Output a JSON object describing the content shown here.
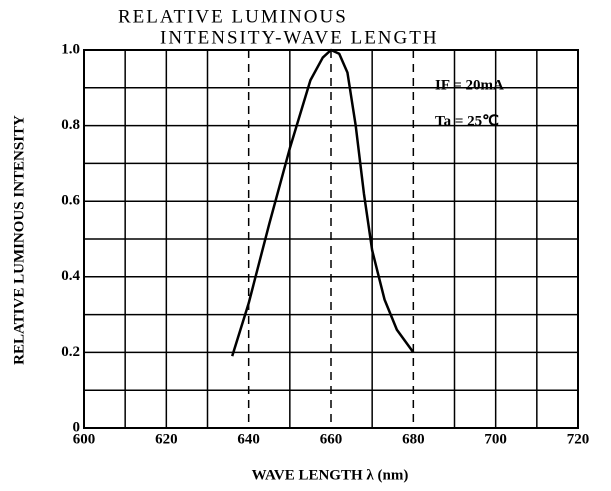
{
  "chart_data": {
    "type": "line",
    "title": [
      "RELATIVE LUMINOUS",
      "INTENSITY-WAVE LENGTH"
    ],
    "xlabel": "WAVE LENGTH  λ   (nm)",
    "ylabel": "RELATIVE LUMINOUS INTENSITY",
    "annotations": [
      "IF = 20mA",
      "Ta = 25℃"
    ],
    "series": [
      {
        "color": "#000000",
        "x": [
          636,
          640,
          645,
          650,
          655,
          658,
          660,
          662,
          664,
          666,
          668,
          670,
          673,
          676,
          680
        ],
        "values": [
          0.19,
          0.33,
          0.54,
          0.74,
          0.92,
          0.98,
          1.0,
          0.99,
          0.94,
          0.8,
          0.62,
          0.47,
          0.34,
          0.26,
          0.2
        ]
      }
    ],
    "xlim": [
      600,
      720
    ],
    "xticks": [
      600,
      620,
      640,
      660,
      680,
      700,
      720
    ],
    "ylim": [
      0,
      1
    ],
    "yticks": [
      0,
      0.2,
      0.4,
      0.6,
      0.8,
      {
        "value": 1,
        "label": "1.0"
      }
    ],
    "xgrid": [
      610,
      630,
      650,
      670,
      690,
      710
    ],
    "ygrid": [
      0.1,
      0.3,
      0.5,
      0.7,
      0.9
    ],
    "grid": true
  }
}
